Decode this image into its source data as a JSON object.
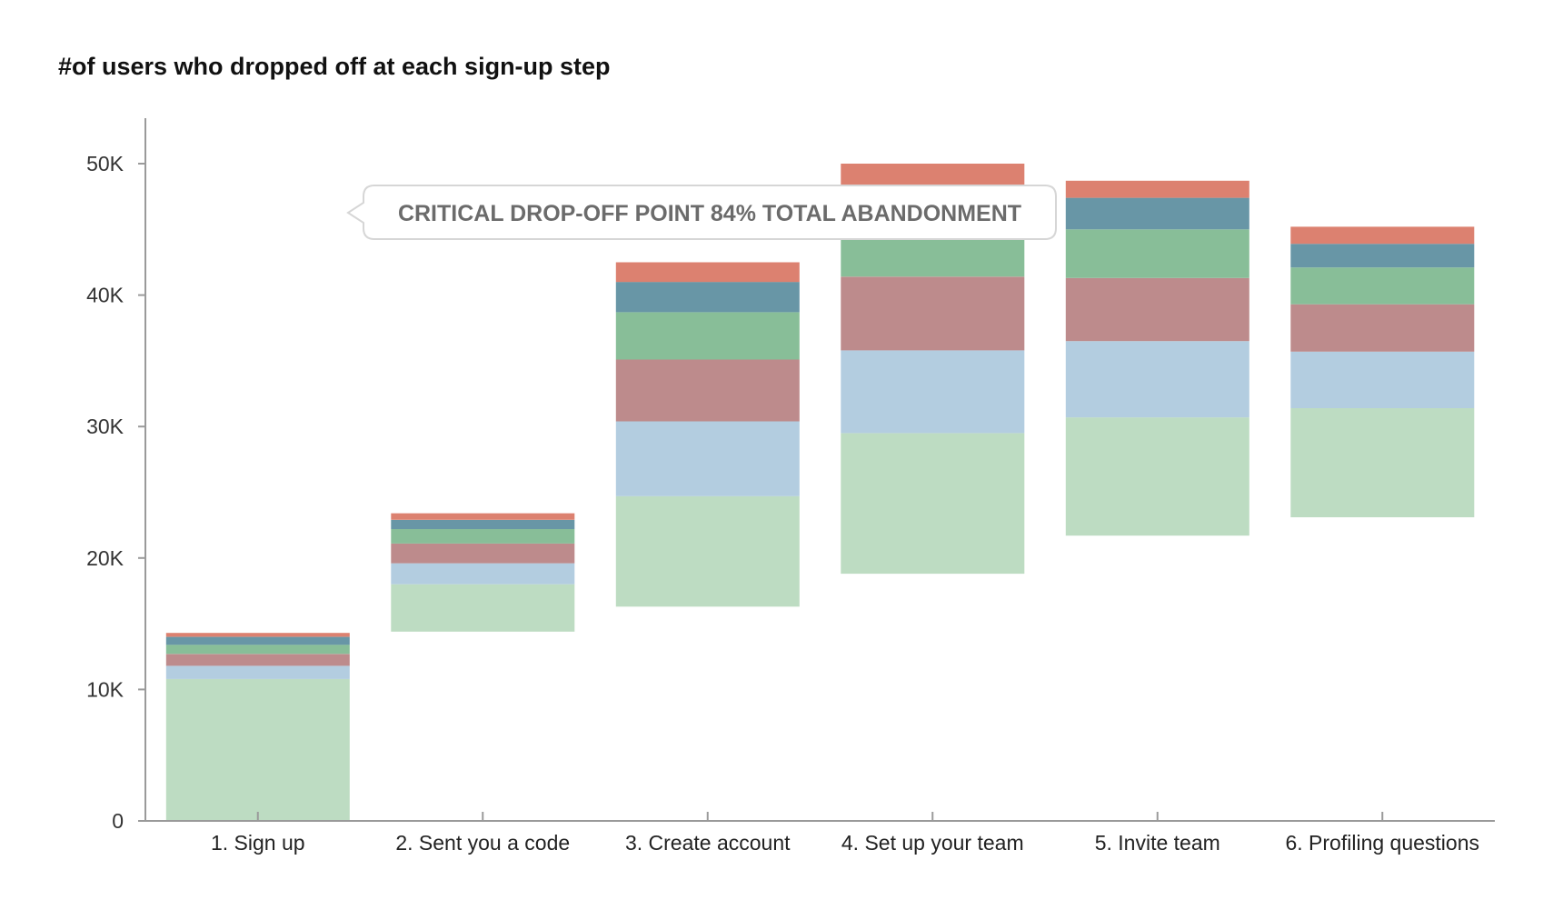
{
  "chart_data": {
    "type": "bar",
    "subtype": "floating-stacked",
    "title": "#of users who dropped off at each sign-up step",
    "xlabel": "",
    "ylabel": "",
    "ylim": [
      0,
      52000
    ],
    "y_ticks": [
      0,
      10000,
      20000,
      30000,
      40000,
      50000
    ],
    "y_tick_labels": [
      "0",
      "10K",
      "20K",
      "30K",
      "40K",
      "50K"
    ],
    "categories": [
      "1. Sign up",
      "2. Sent you a code",
      "3. Create account",
      "4. Set up your team",
      "5. Invite team",
      "6. Profiling questions"
    ],
    "base": [
      0,
      14400,
      16300,
      18800,
      21700,
      23100
    ],
    "segment_colors": [
      "#bddcc2",
      "#b3cde0",
      "#bd8b8c",
      "#88be98",
      "#6896a6",
      "#dc8170"
    ],
    "segments": [
      [
        10800,
        3600,
        8400,
        10700,
        9000,
        8300
      ],
      [
        1000,
        1600,
        5700,
        6300,
        5800,
        4300
      ],
      [
        900,
        1500,
        4700,
        5600,
        4800,
        3600
      ],
      [
        700,
        1100,
        3600,
        4200,
        3700,
        2800
      ],
      [
        600,
        700,
        2300,
        2700,
        2400,
        1800
      ],
      [
        300,
        500,
        1500,
        1700,
        1300,
        1300
      ]
    ],
    "grid": false,
    "legend": "none",
    "annotation": "CRITICAL DROP-OFF POINT 84% TOTAL ABANDONMENT"
  }
}
